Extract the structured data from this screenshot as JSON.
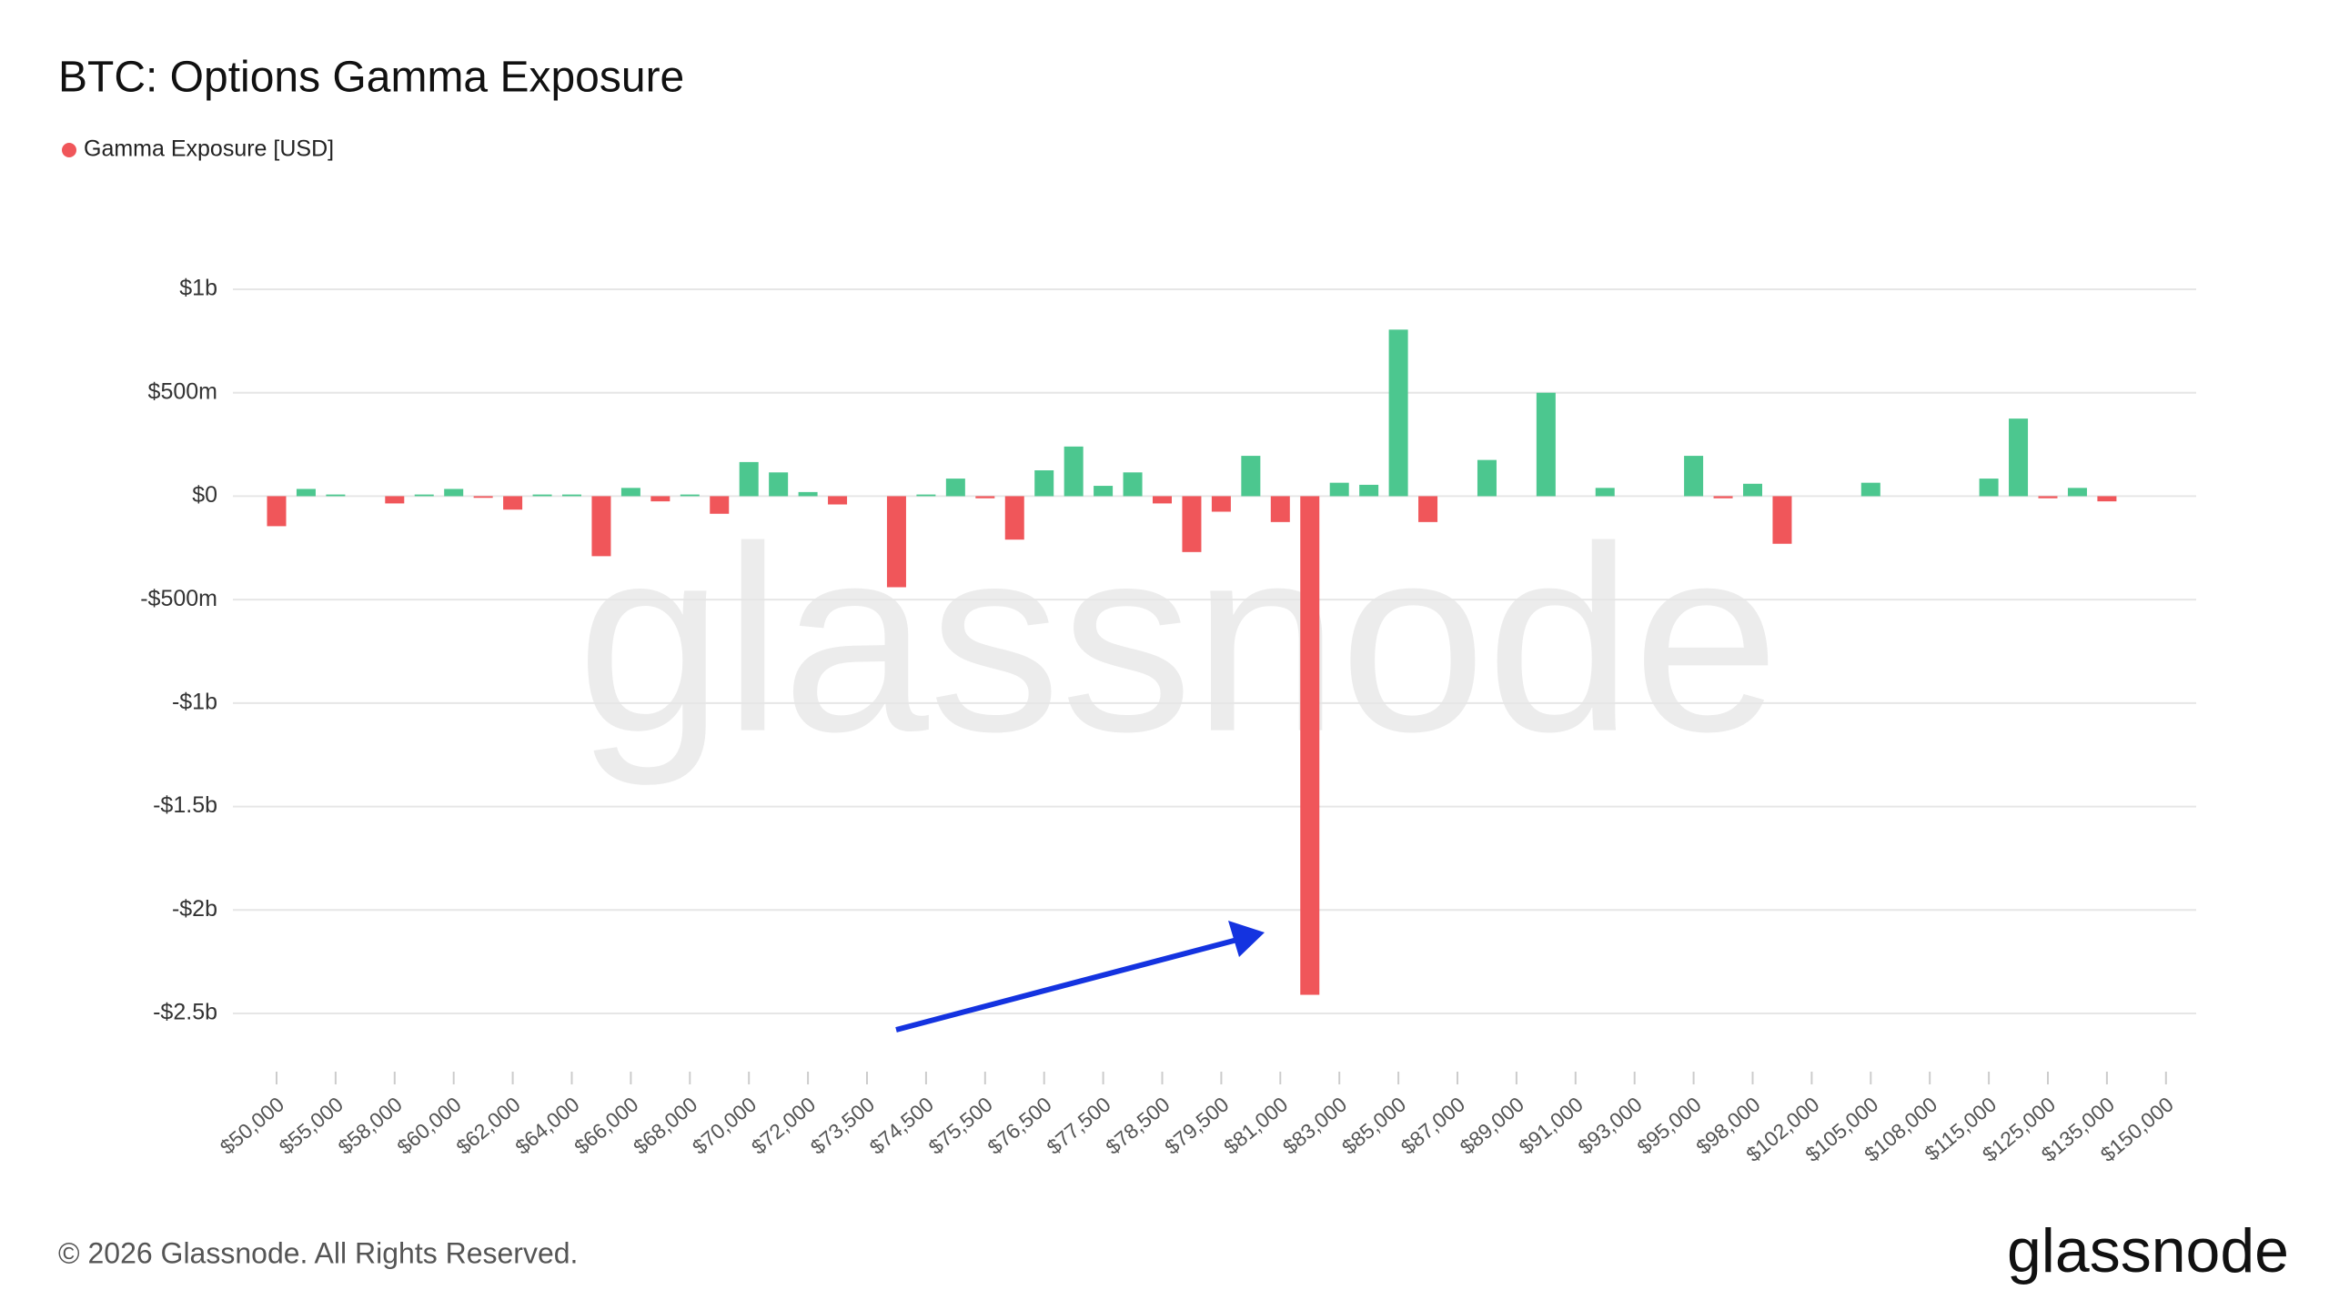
{
  "chart_data": {
    "type": "bar",
    "title": "BTC: Options Gamma Exposure",
    "legend": {
      "name": "Gamma Exposure [USD]",
      "color": "#f0565a"
    },
    "watermark": "glassnode",
    "footer": "© 2026 Glassnode. All Rights Reserved.",
    "logo": "glassnode",
    "positive_color": "#4cc78f",
    "negative_color": "#f0565a",
    "grid": true,
    "ylim": [
      -2500000000,
      1000000000
    ],
    "yticks": [
      {
        "value": 1000000000,
        "label": "$1b"
      },
      {
        "value": 500000000,
        "label": "$500m"
      },
      {
        "value": 0,
        "label": "$0"
      },
      {
        "value": -500000000,
        "label": "-$500m"
      },
      {
        "value": -1000000000,
        "label": "-$1b"
      },
      {
        "value": -1500000000,
        "label": "-$1.5b"
      },
      {
        "value": -2000000000,
        "label": "-$2b"
      },
      {
        "value": -2500000000,
        "label": "-$2.5b"
      }
    ],
    "categories": [
      "$50,000",
      null,
      "$55,000",
      null,
      "$58,000",
      null,
      "$60,000",
      null,
      "$62,000",
      null,
      "$64,000",
      null,
      "$66,000",
      null,
      "$68,000",
      null,
      "$70,000",
      null,
      "$72,000",
      null,
      "$73,500",
      null,
      "$74,500",
      null,
      "$75,500",
      null,
      "$76,500",
      null,
      "$77,500",
      null,
      "$78,500",
      null,
      "$79,500",
      null,
      "$81,000",
      null,
      "$83,000",
      null,
      "$85,000",
      null,
      "$87,000",
      null,
      "$89,000",
      null,
      "$91,000",
      null,
      "$93,000",
      null,
      "$95,000",
      null,
      "$98,000",
      null,
      "$102,000",
      null,
      "$105,000",
      null,
      "$108,000",
      null,
      "$115,000",
      null,
      "$125,000",
      null,
      "$135,000",
      null,
      "$150,000"
    ],
    "values": [
      -145000000,
      35000000,
      8000000,
      0,
      -35000000,
      8000000,
      35000000,
      -8000000,
      -65000000,
      8000000,
      8000000,
      -290000000,
      40000000,
      -25000000,
      8000000,
      -85000000,
      165000000,
      115000000,
      20000000,
      -40000000,
      0,
      -440000000,
      8000000,
      85000000,
      -10000000,
      -210000000,
      125000000,
      240000000,
      50000000,
      115000000,
      -35000000,
      -270000000,
      -75000000,
      195000000,
      -125000000,
      -2410000000,
      65000000,
      55000000,
      805000000,
      -125000000,
      0,
      175000000,
      0,
      500000000,
      0,
      40000000,
      0,
      0,
      195000000,
      -10000000,
      60000000,
      -230000000,
      0,
      0,
      65000000,
      0,
      0,
      0,
      85000000,
      375000000,
      -10000000,
      40000000,
      -25000000,
      0,
      0
    ]
  }
}
